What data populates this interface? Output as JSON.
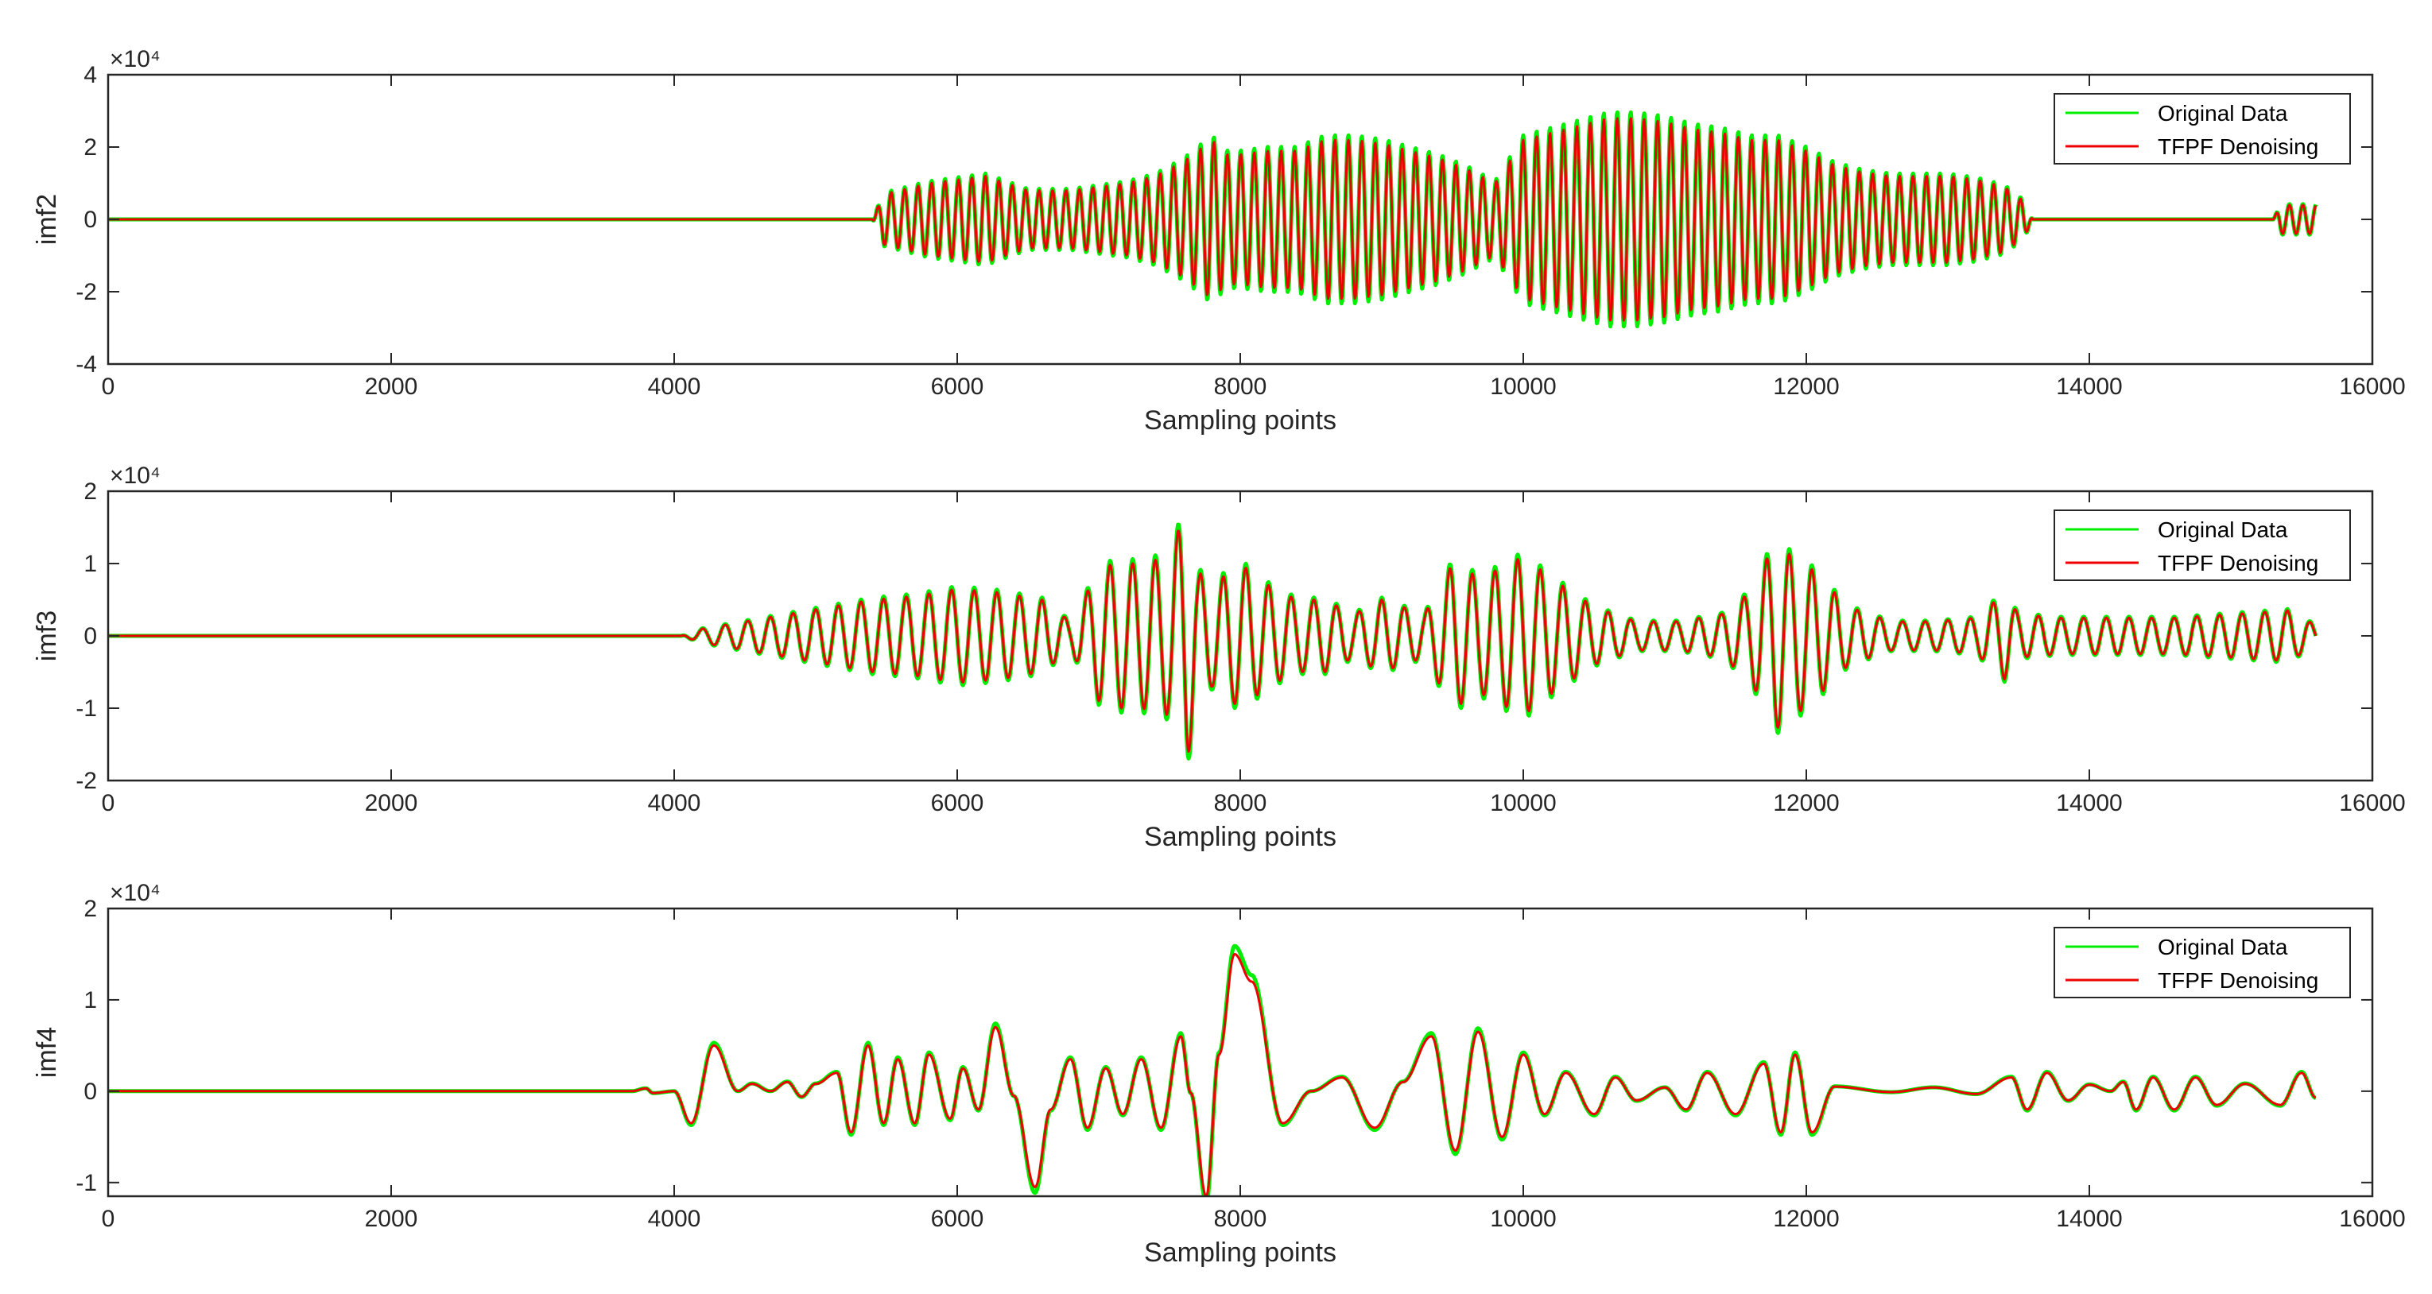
{
  "chart_data": [
    {
      "type": "line",
      "ylabel": "imf2",
      "xlabel": "Sampling points",
      "xlim": [
        0,
        16000
      ],
      "ylim": [
        -40000,
        40000
      ],
      "exponent_label": "×10⁴",
      "xticks": [
        0,
        2000,
        4000,
        6000,
        8000,
        10000,
        12000,
        14000,
        16000
      ],
      "yticks": [
        -4,
        -2,
        0,
        2,
        4
      ],
      "legend": {
        "placement": "top-right",
        "entries": [
          "Original Data",
          "TFPF Denoising"
        ]
      },
      "series": [
        {
          "name": "Original Data",
          "color": "#00ee00"
        },
        {
          "name": "TFPF Denoising",
          "color": "#ee0000"
        }
      ],
      "envelope": {
        "x": [
          0,
          5400,
          5480,
          5800,
          6200,
          6500,
          6800,
          7000,
          7200,
          7400,
          7600,
          7800,
          7900,
          8000,
          8200,
          8400,
          8600,
          8800,
          9000,
          9200,
          9400,
          9600,
          9800,
          10000,
          10200,
          10400,
          10600,
          10800,
          11000,
          11200,
          11400,
          11600,
          11800,
          12000,
          12200,
          12400,
          12600,
          12800,
          13000,
          13200,
          13400,
          13540,
          13600,
          15300,
          15350,
          15600
        ],
        "amplitude": [
          0,
          0,
          7000,
          10000,
          12000,
          8000,
          8000,
          9000,
          10000,
          12000,
          16000,
          22000,
          18000,
          18000,
          19000,
          19000,
          22000,
          22000,
          21000,
          19000,
          17000,
          14000,
          10000,
          22000,
          24000,
          26000,
          28000,
          28000,
          27000,
          25000,
          24000,
          22000,
          22000,
          19000,
          15000,
          13000,
          12000,
          12000,
          12000,
          11000,
          9000,
          5000,
          0,
          0,
          4000,
          4000
        ],
        "period": 95
      }
    },
    {
      "type": "line",
      "ylabel": "imf3",
      "xlabel": "Sampling points",
      "xlim": [
        0,
        16000
      ],
      "ylim": [
        -20000,
        20000
      ],
      "exponent_label": "×10⁴",
      "xticks": [
        0,
        2000,
        4000,
        6000,
        8000,
        10000,
        12000,
        14000,
        16000
      ],
      "yticks": [
        -2,
        -1,
        0,
        1,
        2
      ],
      "legend": {
        "placement": "top-right",
        "entries": [
          "Original Data",
          "TFPF Denoising"
        ]
      },
      "series": [
        {
          "name": "Original Data",
          "color": "#00ee00"
        },
        {
          "name": "TFPF Denoising",
          "color": "#ee0000"
        }
      ],
      "envelope": {
        "x": [
          0,
          4050,
          4200,
          4500,
          4800,
          5100,
          5400,
          5700,
          6000,
          6300,
          6600,
          6800,
          7000,
          7100,
          7300,
          7500,
          7620,
          7700,
          7800,
          8000,
          8200,
          8400,
          8600,
          8800,
          9000,
          9300,
          9500,
          9700,
          9900,
          10000,
          10200,
          10500,
          10800,
          11100,
          11400,
          11600,
          11780,
          11900,
          12000,
          12300,
          12600,
          12900,
          13200,
          13400,
          13500,
          13800,
          14200,
          14600,
          15000,
          15400,
          15600
        ],
        "amplitude": [
          0,
          0,
          1000,
          2000,
          3000,
          4000,
          5000,
          5500,
          6500,
          6000,
          5000,
          2000,
          9000,
          10000,
          10000,
          11000,
          18000,
          9000,
          7000,
          10000,
          7000,
          5000,
          5000,
          3000,
          5000,
          3000,
          10000,
          8000,
          10000,
          11000,
          8000,
          4000,
          2000,
          2000,
          3000,
          6000,
          13000,
          11000,
          10000,
          4000,
          2000,
          2000,
          2500,
          6000,
          3000,
          2500,
          2500,
          2500,
          3000,
          3500,
          1500
        ],
        "period": 160
      }
    },
    {
      "type": "line",
      "ylabel": "imf4",
      "xlabel": "Sampling points",
      "xlim": [
        0,
        16000
      ],
      "ylim": [
        -11500,
        20000
      ],
      "exponent_label": "×10⁴",
      "xticks": [
        0,
        2000,
        4000,
        6000,
        8000,
        10000,
        12000,
        14000,
        16000
      ],
      "yticks": [
        -1,
        0,
        1,
        2
      ],
      "legend": {
        "placement": "top-right",
        "entries": [
          "Original Data",
          "TFPF Denoising"
        ]
      },
      "series": [
        {
          "name": "Original Data",
          "color": "#00ee00"
        },
        {
          "name": "TFPF Denoising",
          "color": "#ee0000"
        }
      ],
      "waveform": {
        "x": [
          0,
          3700,
          3800,
          3850,
          4000,
          4120,
          4280,
          4450,
          4550,
          4680,
          4800,
          4900,
          5000,
          5150,
          5250,
          5370,
          5480,
          5580,
          5700,
          5800,
          5950,
          6040,
          6150,
          6270,
          6400,
          6550,
          6660,
          6800,
          6920,
          7050,
          7170,
          7300,
          7440,
          7580,
          7650,
          7760,
          7850,
          7960,
          8080,
          8300,
          8500,
          8720,
          8950,
          9150,
          9350,
          9520,
          9680,
          9850,
          10000,
          10150,
          10300,
          10500,
          10650,
          10800,
          11000,
          11150,
          11300,
          11500,
          11700,
          11820,
          11920,
          12040,
          12200,
          12600,
          12900,
          13200,
          13450,
          13560,
          13700,
          13850,
          14000,
          14150,
          14240,
          14330,
          14450,
          14600,
          14750,
          14900,
          15100,
          15350,
          15500,
          15600
        ],
        "y": [
          0,
          0,
          300,
          -200,
          0,
          -3500,
          5000,
          0,
          800,
          0,
          1000,
          -600,
          800,
          2000,
          -4500,
          5000,
          -3500,
          3500,
          -3500,
          4000,
          -3000,
          2500,
          -2000,
          7000,
          -500,
          -10500,
          -2000,
          3500,
          -4000,
          2500,
          -2500,
          3500,
          -4000,
          6000,
          -200,
          -11500,
          4000,
          15000,
          12000,
          -3500,
          0,
          1500,
          -4000,
          1000,
          6000,
          -6500,
          6500,
          -5000,
          4000,
          -2500,
          2000,
          -2500,
          1500,
          -1000,
          400,
          -2000,
          2000,
          -2500,
          3000,
          -4500,
          4000,
          -4500,
          500,
          -100,
          400,
          -300,
          1500,
          -2000,
          2000,
          -1000,
          700,
          0,
          1000,
          -2000,
          1500,
          -2000,
          1500,
          -1500,
          800,
          -1500,
          2000,
          -700
        ]
      }
    }
  ]
}
